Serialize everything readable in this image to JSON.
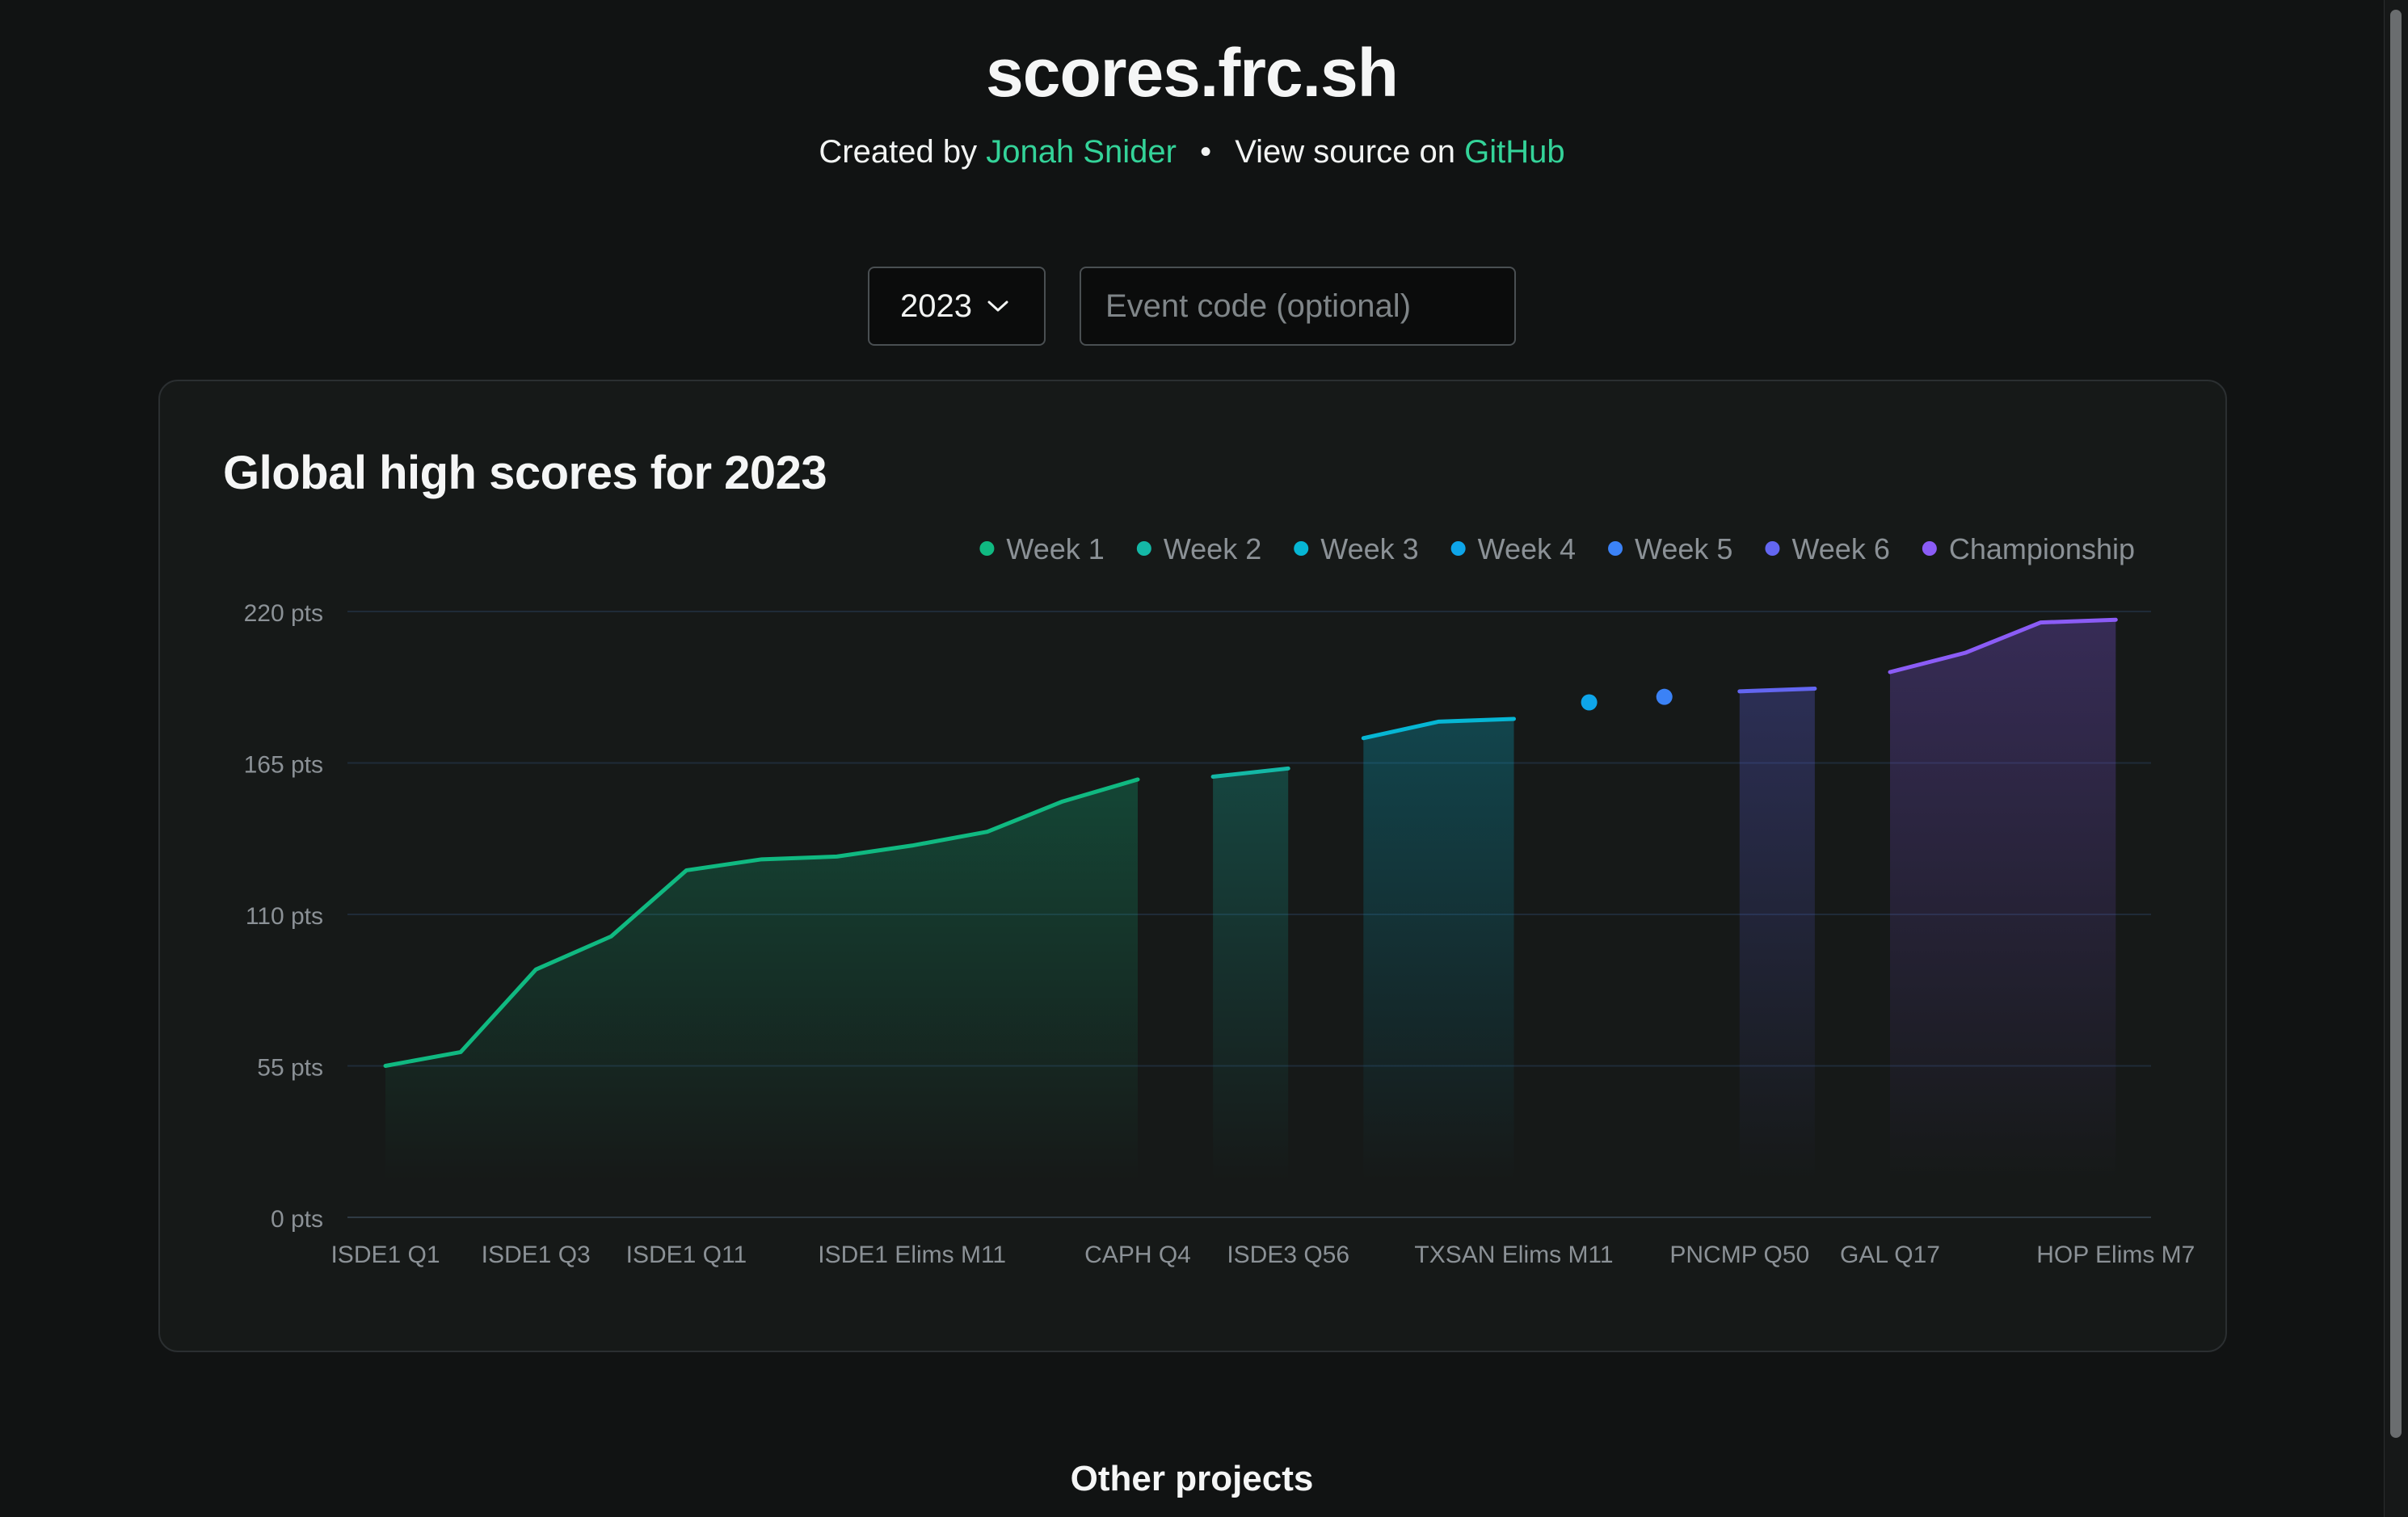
{
  "header": {
    "title": "scores.frc.sh",
    "created_by_prefix": "Created by",
    "author": "Jonah Snider",
    "separator": "•",
    "source_prefix": "View source on",
    "source_link": "GitHub"
  },
  "controls": {
    "year_value": "2023",
    "event_placeholder": "Event code (optional)",
    "event_value": ""
  },
  "footer": {
    "other_projects": "Other projects"
  },
  "chart_data": {
    "type": "line",
    "title": "Global high scores for 2023",
    "xlabel": "",
    "ylabel": "",
    "ylim": [
      0,
      220
    ],
    "y_ticks": [
      0,
      55,
      110,
      165,
      220
    ],
    "y_tick_labels": [
      "0 pts",
      "55 pts",
      "110 pts",
      "165 pts",
      "220 pts"
    ],
    "grid": true,
    "legend_position": "top-right",
    "categories": [
      "ISDE1 Q1",
      "",
      "ISDE1 Q3",
      "",
      "ISDE1 Q11",
      "",
      "",
      "ISDE1 Elims M11",
      "",
      "",
      "CAPH Q4",
      "",
      "ISDE3 Q56",
      "",
      "",
      "TXSAN Elims M11",
      "",
      "",
      "PNCMP Q50",
      "",
      "GAL Q17",
      "",
      "",
      "HOP Elims M7"
    ],
    "tick_labels": [
      "ISDE1 Q1",
      "ISDE1 Q3",
      "ISDE1 Q11",
      "ISDE1 Elims M11",
      "CAPH Q4",
      "ISDE3 Q56",
      "TXSAN Elims M11",
      "PNCMP Q50",
      "GAL Q17",
      "HOP Elims M7"
    ],
    "series": [
      {
        "name": "Week 1",
        "color": "#10b981",
        "x": [
          0,
          1,
          2,
          3,
          4,
          5,
          6,
          7,
          8,
          9,
          10
        ],
        "values": [
          55,
          60,
          90,
          102,
          126,
          130,
          131,
          135,
          140,
          151,
          159
        ]
      },
      {
        "name": "Week 2",
        "color": "#14b8a6",
        "x": [
          11,
          12
        ],
        "values": [
          160,
          163
        ]
      },
      {
        "name": "Week 3",
        "color": "#06b6d4",
        "x": [
          13,
          14,
          15
        ],
        "values": [
          174,
          180,
          181
        ]
      },
      {
        "name": "Week 4",
        "color": "#0ea5e9",
        "x": [
          16
        ],
        "values": [
          187
        ]
      },
      {
        "name": "Week 5",
        "color": "#3b82f6",
        "x": [
          17
        ],
        "values": [
          189
        ]
      },
      {
        "name": "Week 6",
        "color": "#6366f1",
        "x": [
          18,
          19
        ],
        "values": [
          191,
          192
        ]
      },
      {
        "name": "Championship",
        "color": "#8b5cf6",
        "x": [
          20,
          21,
          22,
          23
        ],
        "values": [
          198,
          205,
          216,
          217
        ]
      }
    ]
  }
}
